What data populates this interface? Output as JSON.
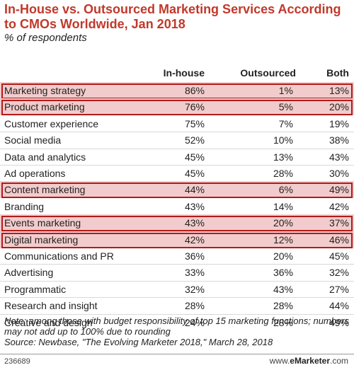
{
  "title": "In-House vs. Outsourced Marketing Services According to CMOs Worldwide, Jan 2018",
  "subtitle": "% of respondents",
  "columns": [
    "In-house",
    "Outsourced",
    "Both"
  ],
  "chart_data": {
    "type": "table",
    "title": "In-House vs. Outsourced Marketing Services According to CMOs Worldwide, Jan 2018",
    "subtitle": "% of respondents",
    "columns": [
      "In-house",
      "Outsourced",
      "Both"
    ],
    "rows": [
      {
        "label": "Marketing strategy",
        "in_house": "86%",
        "outsourced": "1%",
        "both": "13%",
        "highlighted": true
      },
      {
        "label": "Product marketing",
        "in_house": "76%",
        "outsourced": "5%",
        "both": "20%",
        "highlighted": true
      },
      {
        "label": "Customer experience",
        "in_house": "75%",
        "outsourced": "7%",
        "both": "19%",
        "highlighted": false
      },
      {
        "label": "Social media",
        "in_house": "52%",
        "outsourced": "10%",
        "both": "38%",
        "highlighted": false
      },
      {
        "label": "Data and analytics",
        "in_house": "45%",
        "outsourced": "13%",
        "both": "43%",
        "highlighted": false
      },
      {
        "label": "Ad operations",
        "in_house": "45%",
        "outsourced": "28%",
        "both": "30%",
        "highlighted": false
      },
      {
        "label": "Content marketing",
        "in_house": "44%",
        "outsourced": "6%",
        "both": "49%",
        "highlighted": true
      },
      {
        "label": "Branding",
        "in_house": "43%",
        "outsourced": "14%",
        "both": "42%",
        "highlighted": false
      },
      {
        "label": "Events marketing",
        "in_house": "43%",
        "outsourced": "20%",
        "both": "37%",
        "highlighted": true
      },
      {
        "label": "Digital marketing",
        "in_house": "42%",
        "outsourced": "12%",
        "both": "46%",
        "highlighted": true
      },
      {
        "label": "Communications and PR",
        "in_house": "36%",
        "outsourced": "20%",
        "both": "45%",
        "highlighted": false
      },
      {
        "label": "Advertising",
        "in_house": "33%",
        "outsourced": "36%",
        "both": "32%",
        "highlighted": false
      },
      {
        "label": "Programmatic",
        "in_house": "32%",
        "outsourced": "43%",
        "both": "27%",
        "highlighted": false
      },
      {
        "label": "Research and insight",
        "in_house": "28%",
        "outsourced": "28%",
        "both": "44%",
        "highlighted": false
      },
      {
        "label": "Creative and design",
        "in_house": "24%",
        "outsourced": "28%",
        "both": "49%",
        "highlighted": false
      }
    ]
  },
  "note": "Note: among those with budget responsibility of top 15 marketing functions; numbers may not add up to 100% due to rounding",
  "source": "Source: Newbase, \"The Evolving Marketer 2018,\" March 28, 2018",
  "footer": {
    "id": "236689",
    "brand_prefix": "www.",
    "brand_name": "eMarketer",
    "brand_suffix": ".com"
  },
  "colors": {
    "title": "#c0392b",
    "highlight_fill": "#f2cccc",
    "highlight_border": "#b01c1c"
  }
}
